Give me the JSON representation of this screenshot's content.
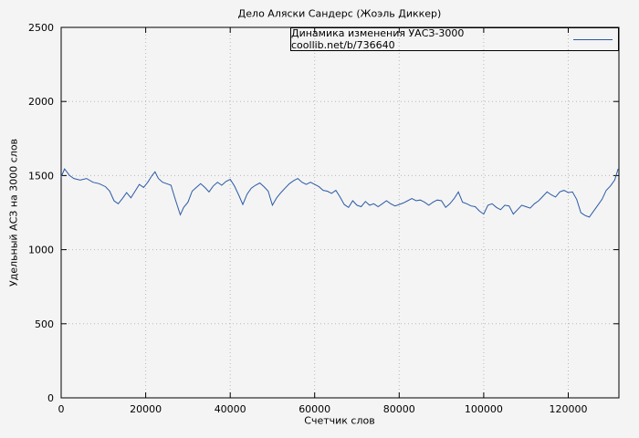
{
  "title": "Дело Аляски Сандерс (Жоэль Диккер)",
  "axes": {
    "x_label": "Счетчик слов",
    "y_label": "Удельный АСЗ на 3000 слов"
  },
  "colors": {
    "line": "#2a5aa5",
    "grid": "#b8b8b8",
    "text": "#000000",
    "background": "#f4f4f4"
  },
  "chart_data": {
    "type": "line",
    "title": "Дело Аляски Сандерс (Жоэль Диккер)",
    "xlabel": "Счетчик слов",
    "ylabel": "Удельный АСЗ на 3000 слов",
    "xlim": [
      0,
      132000
    ],
    "ylim": [
      0,
      2500
    ],
    "x_ticks": [
      0,
      20000,
      40000,
      60000,
      80000,
      100000,
      120000
    ],
    "y_ticks": [
      0,
      500,
      1000,
      1500,
      2000,
      2500
    ],
    "grid": true,
    "legend_position": "top-right",
    "series": [
      {
        "name": "Динамика изменения УАСЗ-3000 coollib.net/b/736640",
        "color": "#2a5aa5",
        "points": [
          [
            0,
            1490
          ],
          [
            800,
            1545
          ],
          [
            2000,
            1500
          ],
          [
            3000,
            1480
          ],
          [
            4500,
            1470
          ],
          [
            6000,
            1480
          ],
          [
            7500,
            1455
          ],
          [
            9000,
            1445
          ],
          [
            10500,
            1425
          ],
          [
            11500,
            1395
          ],
          [
            12500,
            1330
          ],
          [
            13500,
            1310
          ],
          [
            14500,
            1345
          ],
          [
            15500,
            1385
          ],
          [
            16500,
            1350
          ],
          [
            17500,
            1395
          ],
          [
            18500,
            1440
          ],
          [
            19500,
            1420
          ],
          [
            20500,
            1455
          ],
          [
            21500,
            1500
          ],
          [
            22200,
            1525
          ],
          [
            23000,
            1480
          ],
          [
            24000,
            1455
          ],
          [
            25000,
            1445
          ],
          [
            26000,
            1435
          ],
          [
            27000,
            1340
          ],
          [
            28200,
            1235
          ],
          [
            29000,
            1285
          ],
          [
            30000,
            1320
          ],
          [
            31000,
            1395
          ],
          [
            32000,
            1420
          ],
          [
            33000,
            1445
          ],
          [
            34000,
            1420
          ],
          [
            35000,
            1390
          ],
          [
            36000,
            1430
          ],
          [
            37000,
            1455
          ],
          [
            38000,
            1435
          ],
          [
            39000,
            1460
          ],
          [
            40000,
            1475
          ],
          [
            41000,
            1430
          ],
          [
            42000,
            1370
          ],
          [
            43000,
            1305
          ],
          [
            44000,
            1375
          ],
          [
            45000,
            1415
          ],
          [
            46000,
            1435
          ],
          [
            47000,
            1450
          ],
          [
            48000,
            1425
          ],
          [
            49000,
            1395
          ],
          [
            50000,
            1300
          ],
          [
            51000,
            1350
          ],
          [
            52000,
            1385
          ],
          [
            53000,
            1415
          ],
          [
            54000,
            1445
          ],
          [
            55000,
            1465
          ],
          [
            56000,
            1480
          ],
          [
            57000,
            1455
          ],
          [
            58000,
            1440
          ],
          [
            59000,
            1455
          ],
          [
            60000,
            1440
          ],
          [
            61000,
            1425
          ],
          [
            62000,
            1400
          ],
          [
            63000,
            1395
          ],
          [
            64000,
            1380
          ],
          [
            65000,
            1400
          ],
          [
            66000,
            1355
          ],
          [
            67000,
            1305
          ],
          [
            68000,
            1285
          ],
          [
            69000,
            1330
          ],
          [
            70000,
            1300
          ],
          [
            71000,
            1290
          ],
          [
            72000,
            1325
          ],
          [
            73000,
            1300
          ],
          [
            74000,
            1310
          ],
          [
            75000,
            1290
          ],
          [
            76000,
            1310
          ],
          [
            77000,
            1330
          ],
          [
            78000,
            1310
          ],
          [
            79000,
            1295
          ],
          [
            80000,
            1305
          ],
          [
            81000,
            1315
          ],
          [
            82000,
            1330
          ],
          [
            83000,
            1345
          ],
          [
            84000,
            1330
          ],
          [
            85000,
            1335
          ],
          [
            86000,
            1320
          ],
          [
            87000,
            1300
          ],
          [
            88000,
            1320
          ],
          [
            89000,
            1335
          ],
          [
            90000,
            1330
          ],
          [
            91000,
            1285
          ],
          [
            92000,
            1310
          ],
          [
            93000,
            1345
          ],
          [
            94000,
            1390
          ],
          [
            95000,
            1320
          ],
          [
            96000,
            1310
          ],
          [
            97000,
            1295
          ],
          [
            98000,
            1290
          ],
          [
            99000,
            1260
          ],
          [
            100000,
            1240
          ],
          [
            101000,
            1300
          ],
          [
            102000,
            1310
          ],
          [
            103000,
            1285
          ],
          [
            104000,
            1270
          ],
          [
            105000,
            1300
          ],
          [
            106000,
            1295
          ],
          [
            107000,
            1240
          ],
          [
            108000,
            1270
          ],
          [
            109000,
            1300
          ],
          [
            110000,
            1290
          ],
          [
            111000,
            1280
          ],
          [
            112000,
            1310
          ],
          [
            113000,
            1330
          ],
          [
            114000,
            1360
          ],
          [
            115000,
            1390
          ],
          [
            116000,
            1370
          ],
          [
            117000,
            1355
          ],
          [
            118000,
            1390
          ],
          [
            119000,
            1400
          ],
          [
            120000,
            1385
          ],
          [
            121000,
            1390
          ],
          [
            122000,
            1340
          ],
          [
            123000,
            1250
          ],
          [
            124000,
            1230
          ],
          [
            125000,
            1220
          ],
          [
            126000,
            1260
          ],
          [
            127000,
            1300
          ],
          [
            128000,
            1340
          ],
          [
            129000,
            1400
          ],
          [
            130000,
            1430
          ],
          [
            131000,
            1470
          ],
          [
            131800,
            1545
          ]
        ]
      }
    ]
  }
}
